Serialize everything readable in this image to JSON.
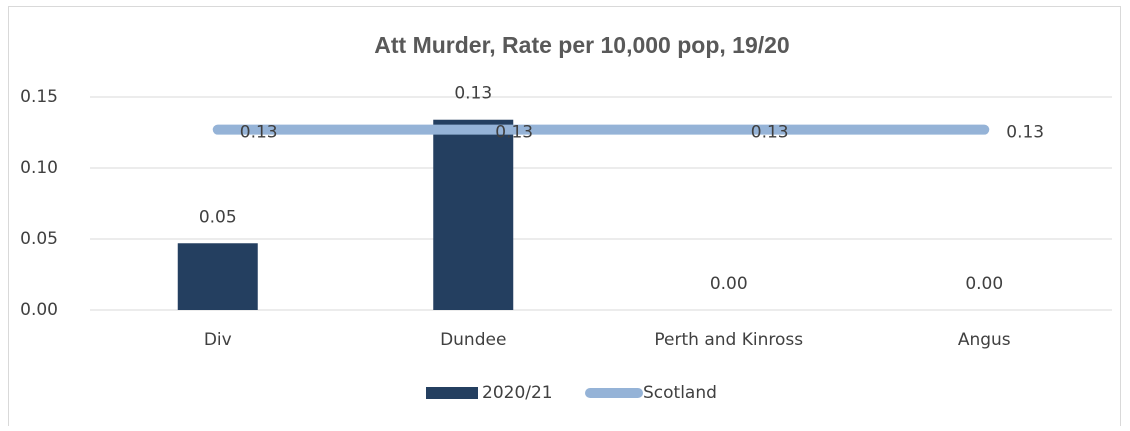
{
  "chart_data": {
    "type": "bar",
    "title": "Att Murder, Rate per 10,000 pop, 19/20",
    "categories": [
      "Div",
      "Dundee",
      "Perth and Kinross",
      "Angus"
    ],
    "series": [
      {
        "name": "2020/21",
        "type": "bar",
        "color": "#243f60",
        "values": [
          0.047,
          0.134,
          0,
          0
        ],
        "value_labels": [
          "0.05",
          "0.13",
          "0.00",
          "0.00"
        ]
      },
      {
        "name": "Scotland",
        "type": "line",
        "color": "#95b3d7",
        "values": [
          0.127,
          0.127,
          0.127,
          0.127
        ],
        "value_labels": [
          "0.13",
          "0.13",
          "0.13",
          "0.13"
        ]
      }
    ],
    "ylim": [
      0,
      0.15
    ],
    "yticks": [
      {
        "value": 0,
        "label": "0.00"
      },
      {
        "value": 0.05,
        "label": "0.05"
      },
      {
        "value": 0.1,
        "label": "0.10"
      },
      {
        "value": 0.15,
        "label": "0.15"
      }
    ],
    "grid": true,
    "legend": "bottom"
  }
}
